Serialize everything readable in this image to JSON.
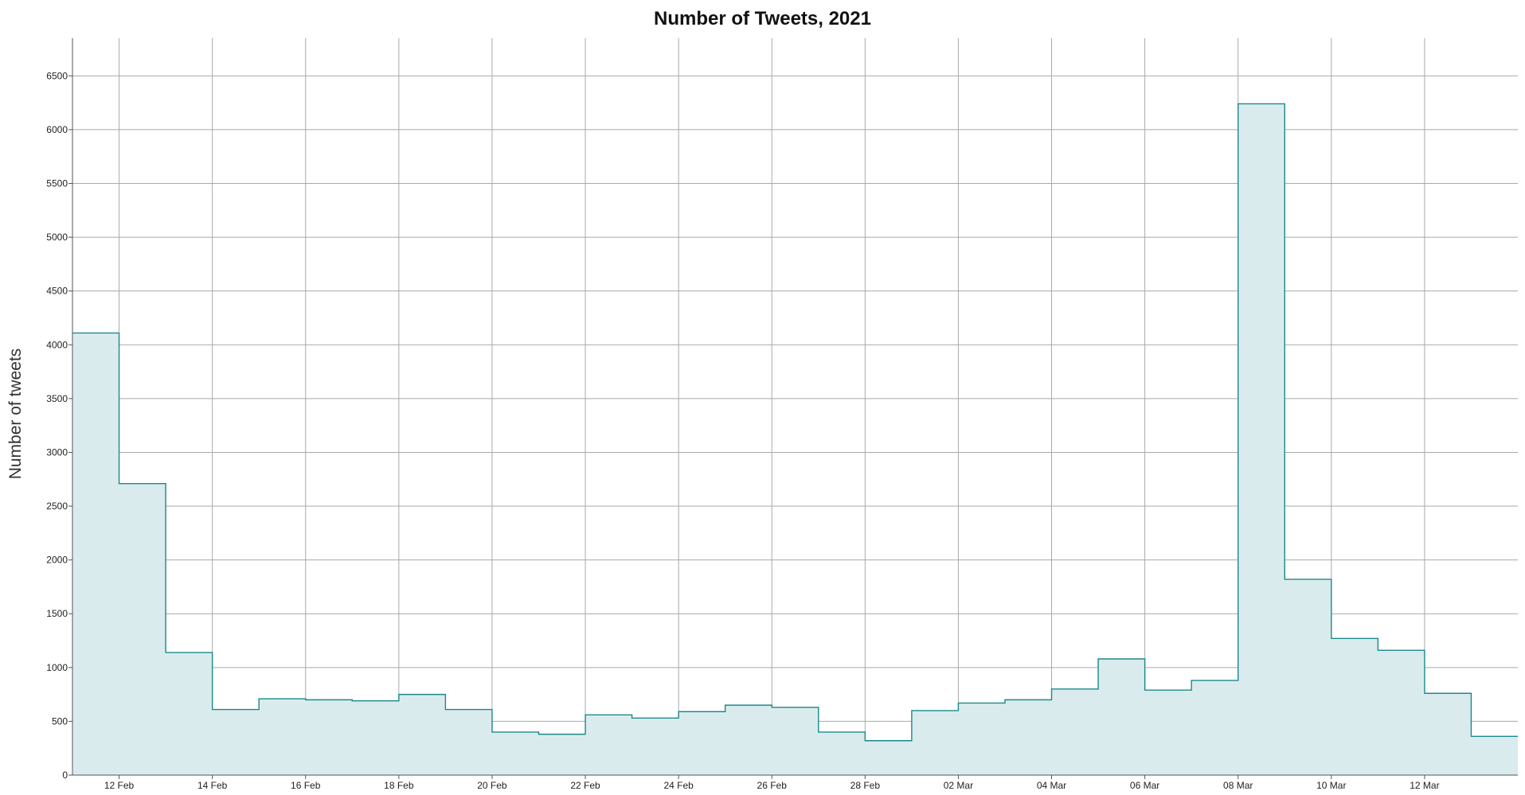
{
  "chart_data": {
    "type": "area",
    "title": "Number of Tweets, 2021",
    "xlabel": "",
    "ylabel": "Number of tweets",
    "ylim": [
      0,
      6850
    ],
    "yticks": [
      0,
      500,
      1000,
      1500,
      2000,
      2500,
      3000,
      3500,
      4000,
      4500,
      5000,
      5500,
      6000,
      6500
    ],
    "xlim": [
      "2021-02-11",
      "2021-03-14"
    ],
    "xtick_dates": [
      "2021-02-12",
      "2021-02-14",
      "2021-02-16",
      "2021-02-18",
      "2021-02-20",
      "2021-02-22",
      "2021-02-24",
      "2021-02-26",
      "2021-02-28",
      "2021-03-02",
      "2021-03-04",
      "2021-03-06",
      "2021-03-08",
      "2021-03-10",
      "2021-03-12"
    ],
    "xtick_labels": [
      "12 Feb",
      "14 Feb",
      "16 Feb",
      "18 Feb",
      "20 Feb",
      "22 Feb",
      "24 Feb",
      "26 Feb",
      "28 Feb",
      "02 Mar",
      "04 Mar",
      "06 Mar",
      "08 Mar",
      "10 Mar",
      "12 Mar"
    ],
    "grid": true,
    "step": "post",
    "series": [
      {
        "line_color": "#1a8a8a",
        "fill_color": "#daebee",
        "x": [
          "2021-02-11",
          "2021-02-12",
          "2021-02-13",
          "2021-02-14",
          "2021-02-15",
          "2021-02-16",
          "2021-02-17",
          "2021-02-18",
          "2021-02-19",
          "2021-02-20",
          "2021-02-21",
          "2021-02-22",
          "2021-02-23",
          "2021-02-24",
          "2021-02-25",
          "2021-02-26",
          "2021-02-27",
          "2021-02-28",
          "2021-03-01",
          "2021-03-02",
          "2021-03-03",
          "2021-03-04",
          "2021-03-05",
          "2021-03-06",
          "2021-03-07",
          "2021-03-08",
          "2021-03-09",
          "2021-03-10",
          "2021-03-11",
          "2021-03-12",
          "2021-03-13"
        ],
        "values": [
          4110,
          2710,
          1140,
          610,
          710,
          700,
          690,
          750,
          610,
          400,
          380,
          560,
          530,
          590,
          650,
          630,
          400,
          320,
          600,
          670,
          700,
          800,
          1080,
          790,
          880,
          6240,
          1820,
          1270,
          1160,
          760,
          360
        ]
      }
    ]
  }
}
